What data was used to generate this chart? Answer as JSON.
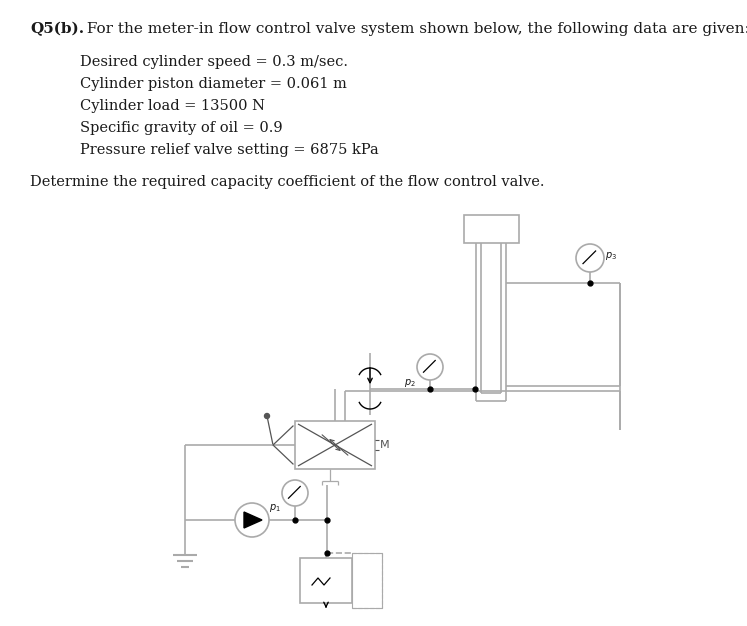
{
  "title_bold": "Q5(b).",
  "title_rest": " For the meter-in flow control valve system shown below, the following data are given:",
  "bullet_lines": [
    "Desired cylinder speed = 0.3 m/sec.",
    "Cylinder piston diameter = 0.061 m",
    "Cylinder load = 13500 N",
    "Specific gravity of oil = 0.9",
    "Pressure relief valve setting = 6875 kPa"
  ],
  "question_line": "Determine the required capacity coefficient of the flow control valve.",
  "bg_color": "#ffffff",
  "text_color": "#1a1a1a",
  "line_color": "#aaaaaa",
  "dark_color": "#555555",
  "fig_w": 7.47,
  "fig_h": 6.26,
  "dpi": 100
}
